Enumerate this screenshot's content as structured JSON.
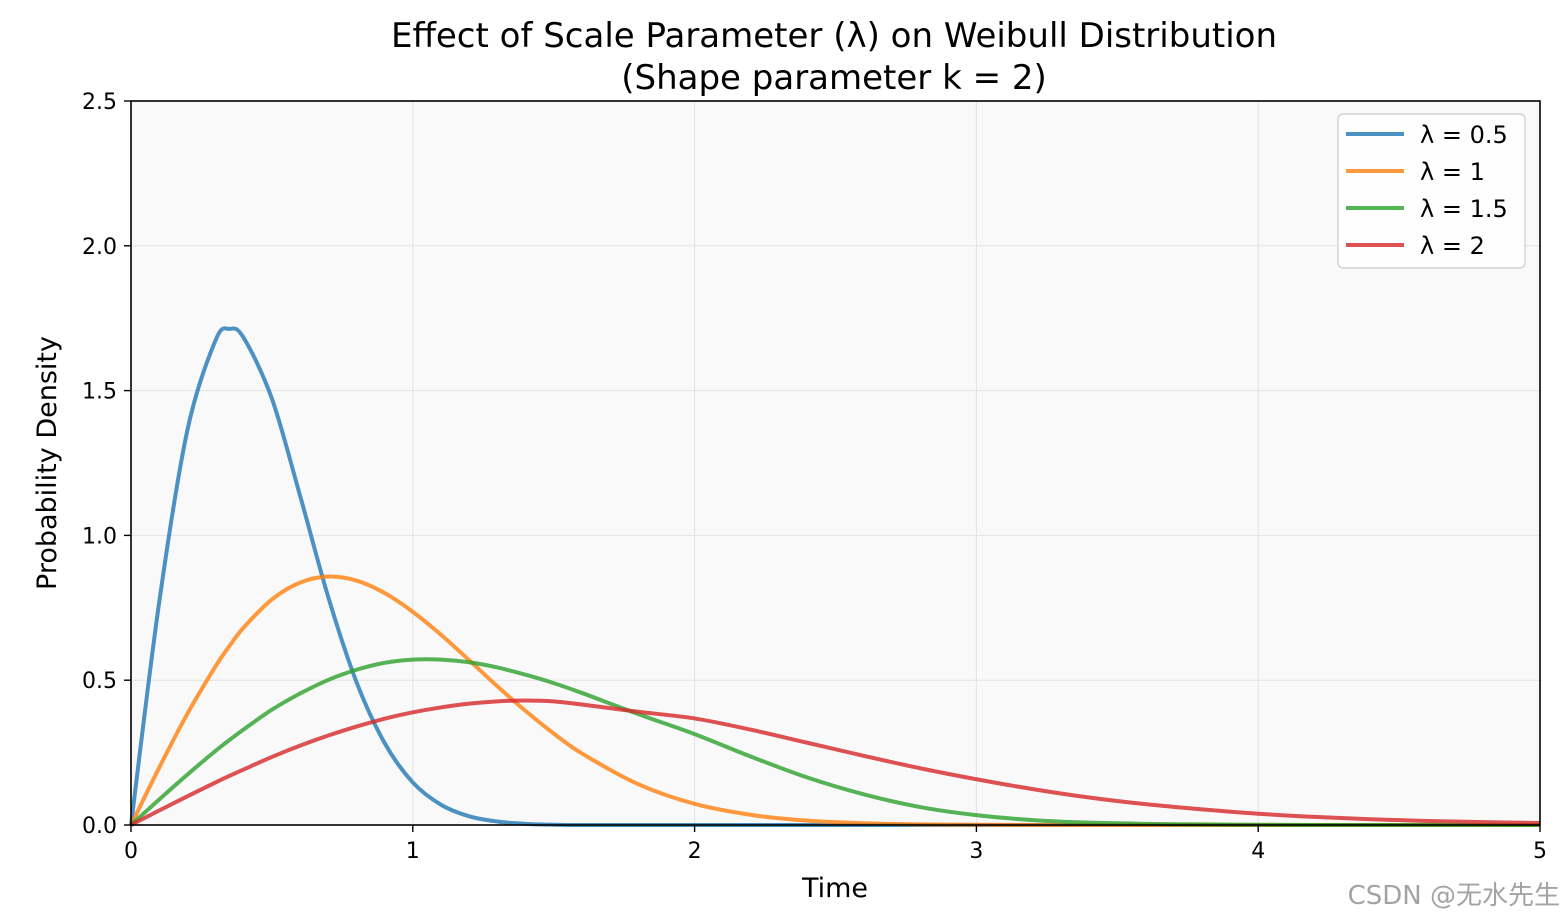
{
  "chart_data": {
    "type": "line",
    "title": "Effect of Scale Parameter (λ) on Weibull Distribution",
    "subtitle": "(Shape parameter k = 2)",
    "xlabel": "Time",
    "ylabel": "Probability Density",
    "xlim": [
      0,
      5
    ],
    "ylim": [
      0,
      2.5
    ],
    "x_ticks": [
      0,
      1,
      2,
      3,
      4,
      5
    ],
    "x_tick_labels": [
      "0",
      "1",
      "2",
      "3",
      "4",
      "5"
    ],
    "y_ticks": [
      0,
      0.5,
      1.0,
      1.5,
      2.0,
      2.5
    ],
    "y_tick_labels": [
      "0.0",
      "0.5",
      "1.0",
      "1.5",
      "2.0",
      "2.5"
    ],
    "grid": true,
    "legend_position": "top-right",
    "shape_k": 2,
    "x": [
      0,
      0.1,
      0.2,
      0.3,
      0.35,
      0.4,
      0.5,
      0.6,
      0.7,
      0.8,
      0.9,
      1.0,
      1.1,
      1.2,
      1.3,
      1.4,
      1.5,
      1.6,
      1.8,
      2.0,
      2.2,
      2.4,
      2.6,
      2.8,
      3.0,
      3.2,
      3.4,
      3.6,
      3.8,
      4.0,
      4.2,
      4.4,
      4.6,
      4.8,
      5.0
    ],
    "series": [
      {
        "name": "λ = 0.5",
        "color": "#1f77b4",
        "values": [
          0,
          0.769,
          1.363,
          1.674,
          1.713,
          1.682,
          1.472,
          1.137,
          0.787,
          0.494,
          0.283,
          0.147,
          0.07,
          0.03,
          0.012,
          0.004,
          0.001,
          0.0,
          0,
          0,
          0,
          0,
          0,
          0,
          0,
          0,
          0,
          0,
          0,
          0,
          0,
          0,
          0,
          0,
          0
        ]
      },
      {
        "name": "λ = 1",
        "color": "#ff7f0e",
        "values": [
          0,
          0.198,
          0.384,
          0.548,
          0.619,
          0.682,
          0.779,
          0.837,
          0.858,
          0.844,
          0.801,
          0.736,
          0.657,
          0.569,
          0.479,
          0.394,
          0.316,
          0.247,
          0.141,
          0.073,
          0.035,
          0.015,
          0.006,
          0.002,
          0.001,
          0,
          0,
          0,
          0,
          0,
          0,
          0,
          0,
          0,
          0
        ]
      },
      {
        "name": "λ = 1.5",
        "color": "#2ca02c",
        "values": [
          0,
          0.088,
          0.174,
          0.256,
          0.294,
          0.33,
          0.398,
          0.454,
          0.501,
          0.536,
          0.56,
          0.571,
          0.571,
          0.562,
          0.544,
          0.519,
          0.49,
          0.456,
          0.383,
          0.314,
          0.236,
          0.164,
          0.106,
          0.062,
          0.034,
          0.017,
          0.008,
          0.004,
          0.002,
          0.001,
          0,
          0,
          0,
          0,
          0
        ]
      },
      {
        "name": "λ = 2",
        "color": "#d62728",
        "values": [
          0,
          0.05,
          0.099,
          0.147,
          0.17,
          0.192,
          0.235,
          0.274,
          0.309,
          0.34,
          0.367,
          0.389,
          0.406,
          0.419,
          0.427,
          0.43,
          0.427,
          0.416,
          0.391,
          0.368,
          0.329,
          0.284,
          0.239,
          0.196,
          0.158,
          0.124,
          0.095,
          0.072,
          0.054,
          0.039,
          0.028,
          0.02,
          0.014,
          0.01,
          0.007
        ]
      }
    ]
  },
  "watermark": "CSDN @无水先生"
}
